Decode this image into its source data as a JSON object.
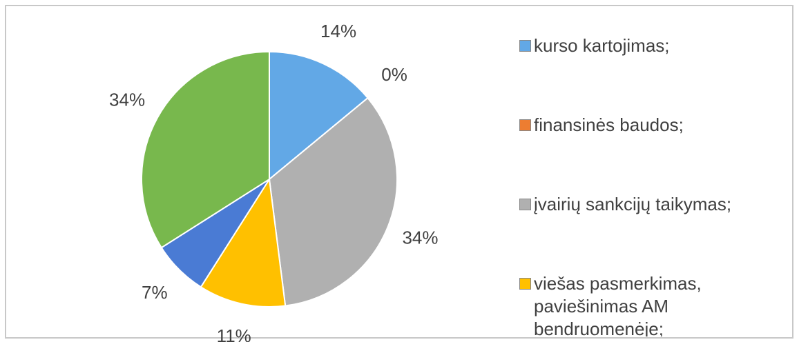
{
  "chart_data": {
    "type": "pie",
    "categories": [
      "kurso kartojimas;",
      "finansinės baudos;",
      "įvairių sankcijų taikymas;",
      "viešas pasmerkimas, paviešinimas AM bendruomenėje;",
      null,
      null
    ],
    "values": [
      14,
      0,
      34,
      11,
      7,
      34
    ],
    "value_labels": [
      "14%",
      "0%",
      "34%",
      "11%",
      "7%",
      "34%"
    ],
    "colors": [
      "#62a8e6",
      "#ed7d31",
      "#b0b0b0",
      "#ffc000",
      "#4a7bd4",
      "#78b84d"
    ],
    "legend": "right"
  }
}
